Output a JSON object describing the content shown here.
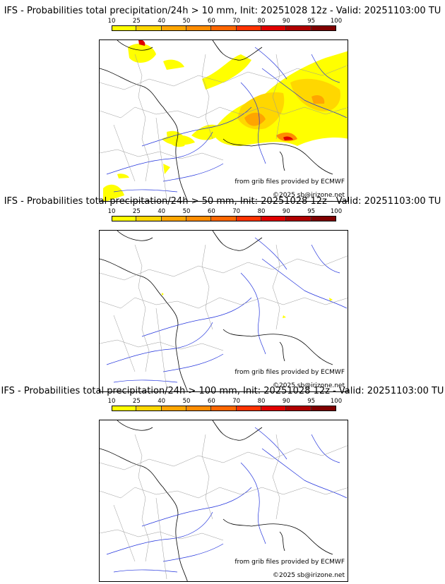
{
  "panels": [
    {
      "title": "IFS - Probabilities total precipitation/24h > 10 mm, Init: 20251028 12z - Valid: 20251103:00 TU"
    },
    {
      "title": "IFS - Probabilities total precipitation/24h > 50 mm, Init: 20251028 12z - Valid: 20251103:00 TU"
    },
    {
      "title": "IFS - Probabilities total precipitation/24h > 100 mm, Init: 20251028 12z - Valid: 20251103:00 TU"
    }
  ],
  "colorbar": {
    "ticks": [
      "10",
      "25",
      "40",
      "50",
      "60",
      "70",
      "80",
      "90",
      "95",
      "100"
    ],
    "colors": [
      "#ffff00",
      "#ffd700",
      "#ffa500",
      "#ff8c00",
      "#ff6600",
      "#ff3300",
      "#e00000",
      "#b00000",
      "#800000"
    ]
  },
  "credits": {
    "source": "from grib files provided by ECMWF",
    "copyright": "©2025 sb@irizone.net"
  },
  "colors": {
    "coast": "#000000",
    "river": "#2233dd",
    "border": "#999999"
  }
}
